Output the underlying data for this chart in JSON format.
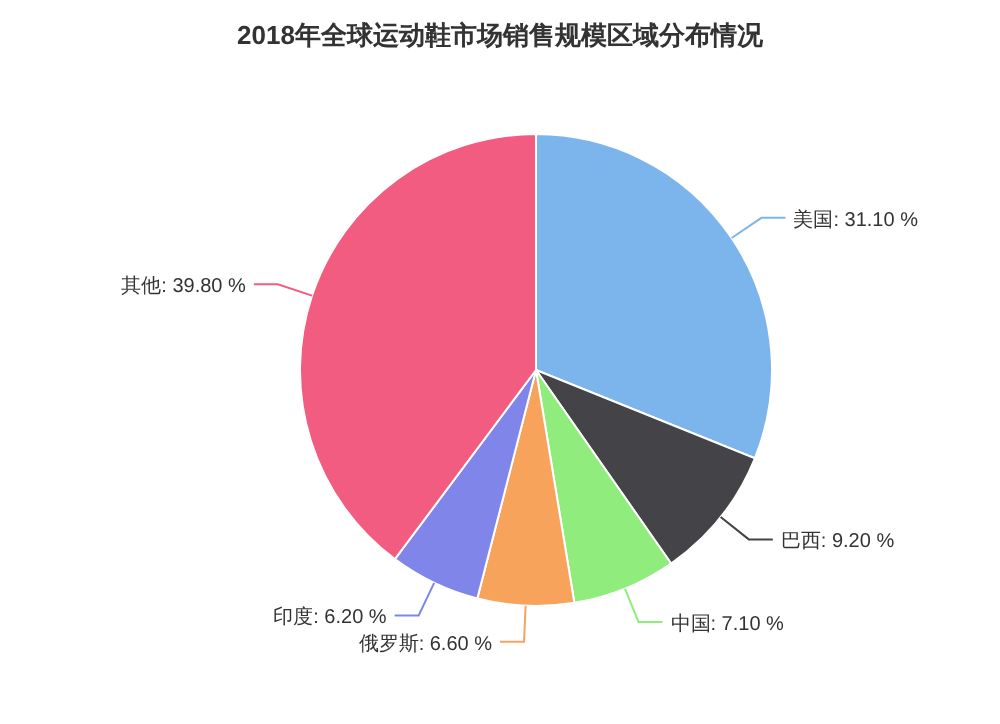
{
  "chart_data": {
    "type": "pie",
    "title": "2018年全球运动鞋市场销售规模区域分布情况",
    "categories": [
      "美国",
      "巴西",
      "中国",
      "俄罗斯",
      "印度",
      "其他"
    ],
    "values": [
      31.1,
      9.2,
      7.1,
      6.6,
      6.2,
      39.8
    ],
    "value_labels": [
      "31.10 %",
      "9.20 %",
      "7.10 %",
      "6.60 %",
      "6.20 %",
      "39.80 %"
    ],
    "colors": [
      "#7cb5ec",
      "#434348",
      "#90ed7d",
      "#f7a35c",
      "#8085e9",
      "#f15c80"
    ]
  }
}
